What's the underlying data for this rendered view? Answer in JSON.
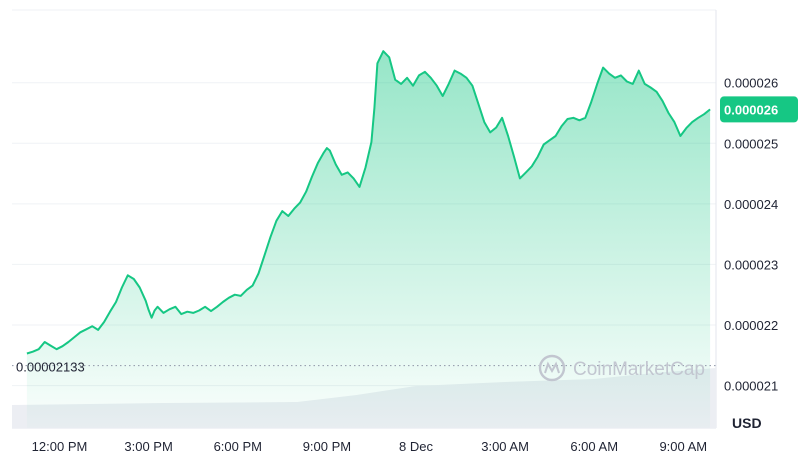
{
  "chart_data": {
    "type": "area",
    "currency": "USD",
    "watermark": "CoinMarketCap",
    "colors": {
      "line": "#16c784",
      "fill": "#16c784",
      "volume": "#eceef3",
      "grid": "#eff2f5"
    },
    "x_ticks": [
      "12:00 PM",
      "3:00 PM",
      "6:00 PM",
      "9:00 PM",
      "8 Dec",
      "3:00 AM",
      "6:00 AM",
      "9:00 AM"
    ],
    "x_tick_hours": [
      1.0,
      4.0,
      7.0,
      10.0,
      13.0,
      16.0,
      19.0,
      22.0
    ],
    "y_ticks": [
      {
        "value": 2.1e-05,
        "label": "0.000021"
      },
      {
        "value": 2.2e-05,
        "label": "0.000022"
      },
      {
        "value": 2.3e-05,
        "label": "0.000023"
      },
      {
        "value": 2.4e-05,
        "label": "0.000024"
      },
      {
        "value": 2.5e-05,
        "label": "0.000025"
      },
      {
        "value": 2.6e-05,
        "label": "0.000026"
      }
    ],
    "ylim": [
      2.03e-05,
      2.72e-05
    ],
    "xlim": [
      -0.6,
      23.1
    ],
    "open_price": {
      "value": 2.133e-05,
      "label": "0.00002133"
    },
    "current_price": {
      "value": 2.556e-05,
      "label": "0.000026"
    },
    "grid": true,
    "series": [
      {
        "x": [
          -0.1,
          0.1,
          0.3,
          0.5,
          0.7,
          0.9,
          1.1,
          1.3,
          1.5,
          1.7,
          1.9,
          2.1,
          2.3,
          2.5,
          2.7,
          2.9,
          3.1,
          3.3,
          3.5,
          3.7,
          3.9,
          4.0,
          4.1,
          4.2,
          4.3,
          4.5,
          4.7,
          4.9,
          5.1,
          5.3,
          5.5,
          5.7,
          5.9,
          6.1,
          6.3,
          6.5,
          6.7,
          6.9,
          7.1,
          7.3,
          7.5,
          7.7,
          7.9,
          8.1,
          8.3,
          8.5,
          8.7,
          8.9,
          9.1,
          9.3,
          9.5,
          9.7,
          9.9,
          10.0,
          10.1,
          10.3,
          10.5,
          10.7,
          10.9,
          11.1,
          11.3,
          11.5,
          11.6,
          11.7,
          11.9,
          12.1,
          12.3,
          12.5,
          12.7,
          12.9,
          13.1,
          13.3,
          13.5,
          13.7,
          13.9,
          14.1,
          14.3,
          14.5,
          14.7,
          14.9,
          15.1,
          15.3,
          15.5,
          15.7,
          15.9,
          16.1,
          16.3,
          16.5,
          16.7,
          16.9,
          17.1,
          17.3,
          17.5,
          17.7,
          17.9,
          18.1,
          18.3,
          18.5,
          18.7,
          18.9,
          19.1,
          19.3,
          19.5,
          19.7,
          19.9,
          20.1,
          20.3,
          20.5,
          20.7,
          20.9,
          21.1,
          21.3,
          21.5,
          21.7,
          21.9,
          22.1,
          22.3,
          22.5,
          22.7,
          22.9
        ],
        "y": [
          2.153e-05,
          2.156e-05,
          2.16e-05,
          2.172e-05,
          2.166e-05,
          2.16e-05,
          2.165e-05,
          2.172e-05,
          2.18e-05,
          2.188e-05,
          2.193e-05,
          2.198e-05,
          2.192e-05,
          2.205e-05,
          2.222e-05,
          2.238e-05,
          2.262e-05,
          2.282e-05,
          2.276e-05,
          2.262e-05,
          2.24e-05,
          2.225e-05,
          2.212e-05,
          2.224e-05,
          2.23e-05,
          2.22e-05,
          2.226e-05,
          2.23e-05,
          2.218e-05,
          2.222e-05,
          2.22e-05,
          2.224e-05,
          2.23e-05,
          2.223e-05,
          2.23e-05,
          2.238e-05,
          2.245e-05,
          2.25e-05,
          2.248e-05,
          2.258e-05,
          2.265e-05,
          2.285e-05,
          2.315e-05,
          2.345e-05,
          2.372e-05,
          2.388e-05,
          2.38e-05,
          2.392e-05,
          2.402e-05,
          2.42e-05,
          2.445e-05,
          2.468e-05,
          2.485e-05,
          2.492e-05,
          2.488e-05,
          2.465e-05,
          2.448e-05,
          2.452e-05,
          2.442e-05,
          2.428e-05,
          2.46e-05,
          2.502e-05,
          2.558e-05,
          2.632e-05,
          2.652e-05,
          2.642e-05,
          2.605e-05,
          2.598e-05,
          2.608e-05,
          2.595e-05,
          2.612e-05,
          2.618e-05,
          2.608e-05,
          2.595e-05,
          2.578e-05,
          2.598e-05,
          2.62e-05,
          2.615e-05,
          2.608e-05,
          2.595e-05,
          2.565e-05,
          2.535e-05,
          2.518e-05,
          2.526e-05,
          2.542e-05,
          2.512e-05,
          2.478e-05,
          2.442e-05,
          2.452e-05,
          2.462e-05,
          2.478e-05,
          2.498e-05,
          2.505e-05,
          2.512e-05,
          2.528e-05,
          2.54e-05,
          2.542e-05,
          2.538e-05,
          2.542e-05,
          2.568e-05,
          2.598e-05,
          2.625e-05,
          2.615e-05,
          2.608e-05,
          2.612e-05,
          2.602e-05,
          2.598e-05,
          2.62e-05,
          2.598e-05,
          2.592e-05,
          2.585e-05,
          2.57e-05,
          2.55e-05,
          2.535e-05,
          2.512e-05,
          2.525e-05,
          2.535e-05,
          2.542e-05,
          2.548e-05,
          2.556e-05
        ]
      }
    ]
  }
}
